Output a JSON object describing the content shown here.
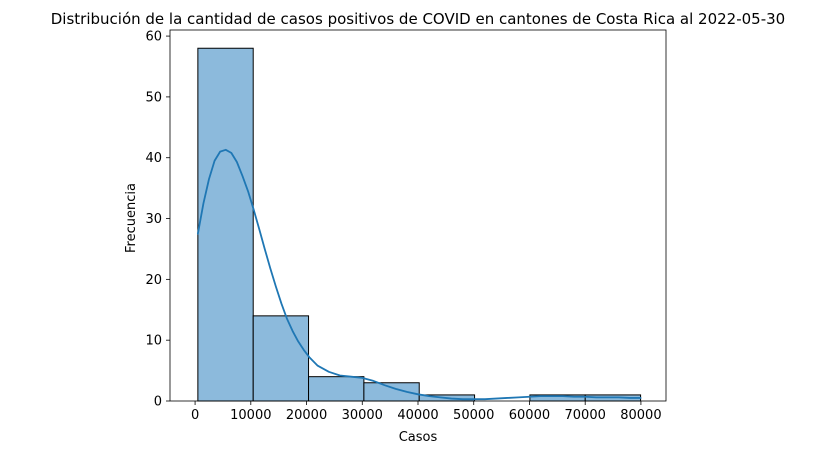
{
  "chart_data": {
    "type": "bar",
    "subtype": "histogram-with-kde",
    "title": "Distribución de la cantidad de casos positivos de COVID en cantones de Costa Rica al 2022-05-30",
    "xlabel": "Casos",
    "ylabel": "Frecuencia",
    "xlim": [
      -4500,
      84500
    ],
    "ylim": [
      0,
      61
    ],
    "xticks": [
      0,
      10000,
      20000,
      30000,
      40000,
      50000,
      60000,
      70000,
      80000
    ],
    "yticks": [
      0,
      10,
      20,
      30,
      40,
      50,
      60
    ],
    "bins": [
      {
        "x0": 500,
        "x1": 10430,
        "count": 58
      },
      {
        "x0": 10430,
        "x1": 20360,
        "count": 14
      },
      {
        "x0": 20360,
        "x1": 30290,
        "count": 4
      },
      {
        "x0": 30290,
        "x1": 40220,
        "count": 3
      },
      {
        "x0": 40220,
        "x1": 50150,
        "count": 1
      },
      {
        "x0": 50150,
        "x1": 60080,
        "count": 0
      },
      {
        "x0": 60080,
        "x1": 70010,
        "count": 1
      },
      {
        "x0": 70010,
        "x1": 79940,
        "count": 1
      }
    ],
    "kde": {
      "x": [
        500,
        1500,
        2500,
        3500,
        4500,
        5500,
        6500,
        7500,
        8500,
        9500,
        10500,
        11500,
        12500,
        13500,
        14500,
        15500,
        16500,
        17500,
        18500,
        19500,
        20500,
        22000,
        24000,
        26000,
        28000,
        30000,
        32000,
        34000,
        36000,
        38000,
        40000,
        42000,
        44000,
        46000,
        48000,
        50000,
        52000,
        54000,
        56000,
        58000,
        60000,
        62000,
        64000,
        66000,
        68000,
        70000,
        72000,
        74000,
        76000,
        78000,
        79940
      ],
      "y": [
        27.5,
        32.5,
        36.5,
        39.5,
        41.0,
        41.3,
        40.8,
        39.3,
        37.0,
        34.5,
        31.5,
        28.3,
        25.0,
        21.8,
        18.8,
        16.0,
        13.5,
        11.5,
        9.8,
        8.4,
        7.2,
        5.8,
        4.8,
        4.2,
        4.0,
        3.8,
        3.3,
        2.6,
        2.0,
        1.5,
        1.1,
        0.8,
        0.6,
        0.4,
        0.3,
        0.3,
        0.3,
        0.4,
        0.5,
        0.6,
        0.7,
        0.8,
        0.8,
        0.8,
        0.7,
        0.7,
        0.6,
        0.6,
        0.6,
        0.5,
        0.5
      ]
    },
    "colors": {
      "bar_fill": "#8cbadc",
      "bar_edge": "#000000",
      "kde_line": "#1f77b4"
    },
    "grid": false,
    "legend": "none"
  }
}
